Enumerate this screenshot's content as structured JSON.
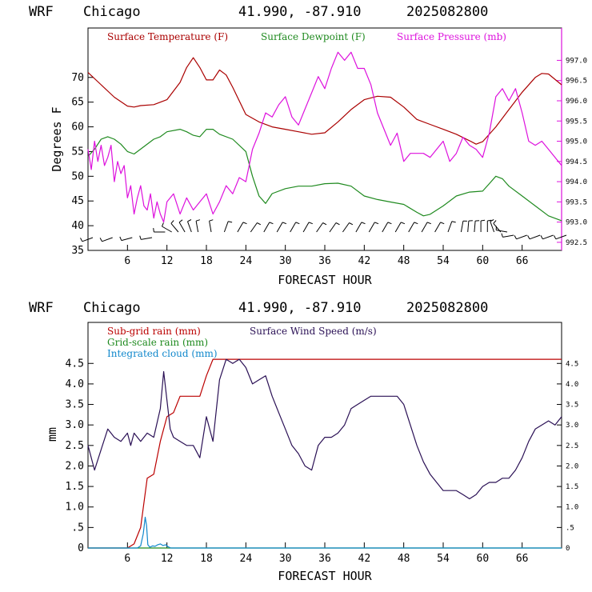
{
  "header": {
    "model": "WRF",
    "location": "Chicago",
    "coords": "41.990, -87.910",
    "run": "2025082800"
  },
  "colors": {
    "temperature": "#aa0000",
    "dewpoint": "#1f8a1f",
    "pressure": "#dd11dd",
    "subgrid_rain": "#bb0000",
    "gridscale_rain": "#1f8a1f",
    "cloud": "#1188cc",
    "wind_speed": "#2a1055",
    "wind_barbs": "#000000"
  },
  "chart_data": [
    {
      "type": "line",
      "title": "",
      "xlabel": "FORECAST HOUR",
      "ylabel": "Degrees F",
      "xlim": [
        0,
        72
      ],
      "ylim": [
        35,
        80
      ],
      "y2lim": [
        992.3,
        997.8
      ],
      "xticks": [
        "6",
        "12",
        "18",
        "24",
        "30",
        "36",
        "42",
        "48",
        "54",
        "60",
        "66"
      ],
      "yticks": [
        "35",
        "40",
        "45",
        "50",
        "55",
        "60",
        "65",
        "70"
      ],
      "y2ticks": [
        "992.5",
        "993.0",
        "993.5",
        "994.0",
        "994.5",
        "995.0",
        "995.5",
        "996.0",
        "996.5",
        "997.0"
      ],
      "legend": [
        "Surface Temperature (F)",
        "Surface Dewpoint (F)",
        "Surface Pressure (mb)"
      ],
      "legend_position": "top",
      "series": [
        {
          "name": "Surface Temperature (F)",
          "axis": "left",
          "x": [
            0,
            2,
            4,
            6,
            7,
            8,
            10,
            12,
            14,
            15,
            16,
            17,
            18,
            19,
            20,
            21,
            22,
            24,
            26,
            28,
            30,
            32,
            34,
            36,
            38,
            40,
            42,
            44,
            46,
            48,
            50,
            52,
            54,
            56,
            58,
            59,
            60,
            62,
            64,
            66,
            68,
            69,
            70,
            72
          ],
          "y": [
            71,
            68.5,
            66,
            64.2,
            64,
            64.3,
            64.5,
            65.5,
            69,
            72,
            74,
            72,
            69.5,
            69.5,
            71.5,
            70.5,
            68,
            62.5,
            61,
            60,
            59.5,
            59,
            58.5,
            58.8,
            61,
            63.5,
            65.5,
            66.2,
            66,
            64,
            61.5,
            60.5,
            59.5,
            58.5,
            57.2,
            56.5,
            57,
            60,
            63.5,
            67,
            70,
            70.8,
            70.7,
            68.5
          ]
        },
        {
          "name": "Surface Dewpoint (F)",
          "axis": "left",
          "x": [
            0,
            1,
            2,
            3,
            4,
            5,
            6,
            7,
            8,
            10,
            11,
            12,
            14,
            15,
            16,
            17,
            18,
            19,
            20,
            22,
            24,
            25,
            26,
            27,
            28,
            30,
            32,
            34,
            36,
            38,
            40,
            42,
            44,
            46,
            48,
            50,
            51,
            52,
            54,
            56,
            58,
            60,
            61,
            62,
            63,
            64,
            66,
            68,
            70,
            72
          ],
          "y": [
            54,
            55.5,
            57.5,
            58,
            57.5,
            56.5,
            55,
            54.5,
            55.5,
            57.5,
            58,
            59,
            59.5,
            59,
            58.3,
            58,
            59.5,
            59.5,
            58.5,
            57.5,
            55,
            50,
            46,
            44.5,
            46.5,
            47.5,
            48,
            48,
            48.5,
            48.6,
            48,
            46,
            45.3,
            44.8,
            44.3,
            42.7,
            42,
            42.3,
            44,
            46,
            46.8,
            47,
            48.5,
            50,
            49.5,
            48,
            46,
            44,
            42,
            41
          ]
        },
        {
          "name": "Surface Pressure (mb)",
          "axis": "right",
          "x": [
            0,
            0.5,
            1,
            1.5,
            2,
            2.5,
            3,
            3.5,
            4,
            4.5,
            5,
            5.5,
            6,
            6.5,
            7,
            7.5,
            8,
            8.5,
            9,
            9.5,
            10,
            10.5,
            11,
            11.5,
            12,
            13,
            14,
            15,
            16,
            17,
            18,
            19,
            20,
            21,
            22,
            23,
            24,
            25,
            26,
            27,
            28,
            29,
            30,
            31,
            32,
            33,
            34,
            35,
            36,
            37,
            38,
            39,
            40,
            41,
            42,
            43,
            44,
            45,
            46,
            47,
            48,
            49,
            50,
            51,
            52,
            53,
            54,
            55,
            56,
            57,
            58,
            59,
            60,
            61,
            62,
            63,
            64,
            65,
            66,
            67,
            68,
            69,
            70,
            71,
            72
          ],
          "y": [
            994.8,
            994.3,
            995,
            994.5,
            994.9,
            994.4,
            994.6,
            994.9,
            994.0,
            994.5,
            994.2,
            994.4,
            993.6,
            993.9,
            993.2,
            993.6,
            993.9,
            993.4,
            993.3,
            993.7,
            993.1,
            993.5,
            993.2,
            993.0,
            993.5,
            993.7,
            993.2,
            993.6,
            993.3,
            993.5,
            993.7,
            993.2,
            993.5,
            993.9,
            993.7,
            994.1,
            994.0,
            994.8,
            995.2,
            995.7,
            995.6,
            995.9,
            996.1,
            995.6,
            995.4,
            995.8,
            996.2,
            996.6,
            996.3,
            996.8,
            997.2,
            997.0,
            997.2,
            996.8,
            996.8,
            996.4,
            995.7,
            995.3,
            994.9,
            995.2,
            994.5,
            994.7,
            994.7,
            994.7,
            994.6,
            994.8,
            995.0,
            994.5,
            994.7,
            995.1,
            994.9,
            994.8,
            994.6,
            995.2,
            996.1,
            996.3,
            996.0,
            996.3,
            995.7,
            995.0,
            994.9,
            995.0,
            994.8,
            994.6,
            994.4
          ]
        }
      ],
      "wind_barbs": {
        "x": [
          0,
          3,
          6,
          9,
          11,
          12,
          13,
          14,
          15,
          16,
          18,
          20,
          22,
          24,
          26,
          28,
          30,
          32,
          34,
          36,
          38,
          40,
          42,
          44,
          46,
          48,
          50,
          52,
          54,
          56,
          57,
          58,
          59,
          60,
          61,
          62,
          63,
          64,
          66,
          68,
          70,
          72
        ],
        "direction_deg": [
          250,
          250,
          255,
          260,
          270,
          300,
          320,
          330,
          340,
          350,
          350,
          20,
          30,
          35,
          30,
          30,
          30,
          30,
          35,
          35,
          35,
          30,
          30,
          30,
          30,
          30,
          30,
          30,
          20,
          10,
          5,
          5,
          0,
          0,
          340,
          320,
          280,
          260,
          250,
          250,
          250,
          250
        ]
      }
    },
    {
      "type": "line",
      "title": "",
      "xlabel": "FORECAST HOUR",
      "ylabel": "mm",
      "xlim": [
        0,
        72
      ],
      "ylim": [
        0,
        5.5
      ],
      "y2lim": [
        0,
        5.5
      ],
      "xticks": [
        "6",
        "12",
        "18",
        "24",
        "30",
        "36",
        "42",
        "48",
        "54",
        "60",
        "66"
      ],
      "yticks": [
        "0",
        ".5",
        "1.0",
        "1.5",
        "2.0",
        "2.5",
        "3.0",
        "3.5",
        "4.0",
        "4.5"
      ],
      "y2ticks": [
        "0",
        ".5",
        "1.0",
        "1.5",
        "2.0",
        "2.5",
        "3.0",
        "3.5",
        "4.0",
        "4.5"
      ],
      "legend": [
        "Sub-grid rain (mm)",
        "Grid-scale rain (mm)",
        "Integrated cloud (mm)",
        "Surface Wind Speed (m/s)"
      ],
      "legend_position": "top",
      "series": [
        {
          "name": "Sub-grid rain (mm)",
          "axis": "left",
          "x": [
            0,
            6,
            7,
            8,
            9,
            10,
            11,
            12,
            13,
            14,
            15,
            16,
            17,
            18,
            19,
            72
          ],
          "y": [
            0,
            0,
            0.1,
            0.5,
            1.7,
            1.8,
            2.6,
            3.2,
            3.3,
            3.7,
            3.7,
            3.7,
            3.7,
            4.2,
            4.6,
            4.6
          ]
        },
        {
          "name": "Grid-scale rain (mm)",
          "axis": "left",
          "x": [
            0,
            72
          ],
          "y": [
            0,
            0
          ]
        },
        {
          "name": "Integrated cloud (mm)",
          "axis": "left",
          "x": [
            0,
            7.5,
            8,
            8.4,
            8.7,
            8.9,
            9.1,
            9.4,
            9.8,
            10.2,
            10.6,
            11,
            11.4,
            11.8,
            12.2,
            12.6,
            72
          ],
          "y": [
            0,
            0,
            0.05,
            0.35,
            0.75,
            0.55,
            0.08,
            0.02,
            0.05,
            0.04,
            0.08,
            0.1,
            0.06,
            0.08,
            0.03,
            0,
            0
          ]
        },
        {
          "name": "Surface Wind Speed (m/s)",
          "axis": "right",
          "x": [
            0,
            1,
            2,
            3,
            4,
            5,
            6,
            6.5,
            7,
            8,
            9,
            10,
            11,
            11.5,
            12,
            12.5,
            13,
            14,
            15,
            16,
            17,
            18,
            19,
            20,
            21,
            22,
            23,
            24,
            25,
            26,
            27,
            28,
            29,
            30,
            31,
            32,
            33,
            34,
            35,
            36,
            37,
            38,
            39,
            40,
            41,
            42,
            43,
            44,
            45,
            46,
            47,
            48,
            49,
            50,
            51,
            52,
            53,
            54,
            55,
            56,
            57,
            58,
            59,
            60,
            61,
            62,
            63,
            64,
            65,
            66,
            67,
            68,
            69,
            70,
            71,
            72
          ],
          "y": [
            2.5,
            1.9,
            2.4,
            2.9,
            2.7,
            2.6,
            2.8,
            2.5,
            2.8,
            2.6,
            2.8,
            2.7,
            3.4,
            4.3,
            3.6,
            2.9,
            2.7,
            2.6,
            2.5,
            2.5,
            2.2,
            3.2,
            2.6,
            4.1,
            4.6,
            4.5,
            4.6,
            4.4,
            4.0,
            4.1,
            4.2,
            3.7,
            3.3,
            2.9,
            2.5,
            2.3,
            2.0,
            1.9,
            2.5,
            2.7,
            2.7,
            2.8,
            3.0,
            3.4,
            3.5,
            3.6,
            3.7,
            3.7,
            3.7,
            3.7,
            3.7,
            3.5,
            3.0,
            2.5,
            2.1,
            1.8,
            1.6,
            1.4,
            1.4,
            1.4,
            1.3,
            1.2,
            1.3,
            1.5,
            1.6,
            1.6,
            1.7,
            1.7,
            1.9,
            2.2,
            2.6,
            2.9,
            3.0,
            3.1,
            3.0,
            3.2
          ]
        }
      ]
    }
  ]
}
